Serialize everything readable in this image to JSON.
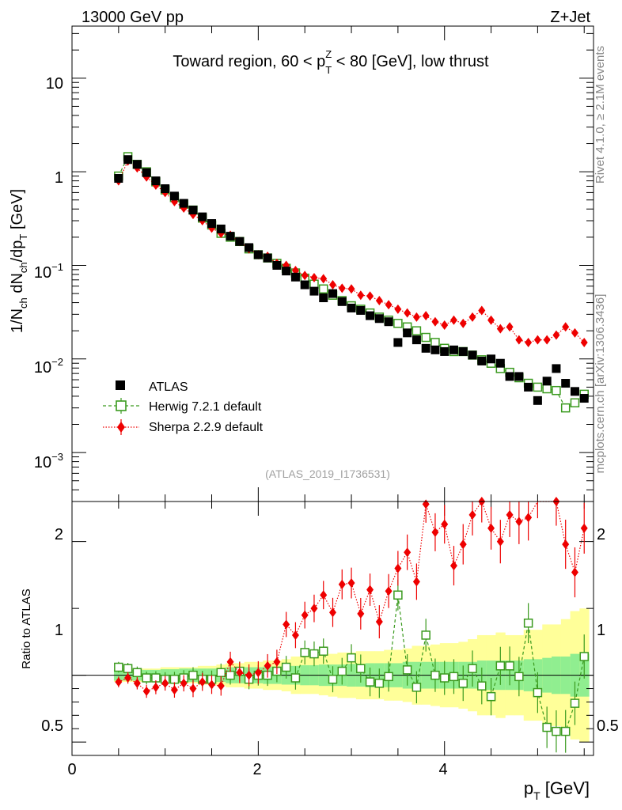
{
  "header": {
    "left": "13000 GeV pp",
    "right": "Z+Jet"
  },
  "side_text": {
    "rivet": "Rivet 4.1.0, ≥ 2.1M events",
    "mcplots": "mcplots.cern.ch [arXiv:1306.3436]"
  },
  "analysis_tag": "(ATLAS_2019_I1736531)",
  "title": {
    "pre": "Toward region, 60 < p",
    "sup": "Z",
    "sub": "T",
    "post": " < 80 [GeV], low thrust"
  },
  "axes": {
    "ylabel_main": "1/N_ch dN_ch/dp_T [GeV]",
    "ylabel_ratio": "Ratio to ATLAS",
    "xlabel": "p_T [GeV]",
    "main_yticks": [
      "10",
      "1",
      "10^-1",
      "10^-2",
      "10^-3"
    ],
    "ratio_ytick_labels": [
      "2",
      "1",
      "0.5"
    ],
    "xtick_labels": [
      "0",
      "2",
      "4"
    ]
  },
  "legend": {
    "atlas": "ATLAS",
    "herwig": "Herwig 7.2.1 default",
    "sherpa": "Sherpa 2.2.9 default"
  },
  "colors": {
    "atlas": "#000000",
    "herwig": "#3a9a1e",
    "sherpa": "#ee0000",
    "band_inner": "#90ee90",
    "band_outer": "#ffff99"
  },
  "chart_data": {
    "type": "scatter",
    "x_range": [
      0,
      5.6
    ],
    "main_y_range_log": [
      0.0003,
      36
    ],
    "ratio_y_range": [
      0.4,
      2.3
    ],
    "x": [
      0.5,
      0.6,
      0.7,
      0.8,
      0.9,
      1.0,
      1.1,
      1.2,
      1.3,
      1.4,
      1.5,
      1.6,
      1.7,
      1.8,
      1.9,
      2.0,
      2.1,
      2.2,
      2.3,
      2.4,
      2.5,
      2.6,
      2.7,
      2.8,
      2.9,
      3.0,
      3.1,
      3.2,
      3.3,
      3.4,
      3.5,
      3.6,
      3.7,
      3.8,
      3.9,
      4.0,
      4.1,
      4.2,
      4.3,
      4.4,
      4.5,
      4.6,
      4.7,
      4.8,
      4.9,
      5.0,
      5.1,
      5.2,
      5.3,
      5.4,
      5.5
    ],
    "series": [
      {
        "name": "ATLAS",
        "values": [
          0.85,
          1.35,
          1.2,
          0.98,
          0.8,
          0.66,
          0.55,
          0.46,
          0.39,
          0.33,
          0.28,
          0.245,
          0.205,
          0.18,
          0.155,
          0.13,
          0.12,
          0.1,
          0.087,
          0.075,
          0.062,
          0.053,
          0.045,
          0.05,
          0.041,
          0.035,
          0.033,
          0.029,
          0.027,
          0.025,
          0.015,
          0.019,
          0.016,
          0.013,
          0.0125,
          0.012,
          0.0125,
          0.012,
          0.011,
          0.0095,
          0.01,
          0.009,
          0.0065,
          0.0065,
          0.005,
          0.0036,
          0.0058,
          0.0079,
          0.0055,
          0.0045,
          0.0038
        ]
      },
      {
        "name": "Herwig 7.2.1 default",
        "values": [
          0.9,
          1.45,
          1.2,
          1.0,
          0.78,
          0.64,
          0.53,
          0.45,
          0.39,
          0.32,
          0.27,
          0.22,
          0.2,
          0.18,
          0.15,
          0.13,
          0.12,
          0.105,
          0.093,
          0.083,
          0.073,
          0.063,
          0.056,
          0.048,
          0.042,
          0.037,
          0.034,
          0.031,
          0.028,
          0.026,
          0.024,
          0.022,
          0.02,
          0.017,
          0.015,
          0.013,
          0.012,
          0.012,
          0.011,
          0.0098,
          0.009,
          0.0079,
          0.0072,
          0.0063,
          0.0055,
          0.005,
          0.0048,
          0.0046,
          0.003,
          0.0034,
          0.0042
        ],
        "ratio": [
          1.06,
          1.05,
          1.02,
          0.98,
          0.98,
          0.97,
          0.97,
          0.98,
          1.0,
          0.97,
          0.97,
          1.02,
          1.0,
          1.03,
          0.97,
          1.0,
          1.0,
          1.03,
          1.06,
          0.98,
          1.17,
          1.16,
          1.18,
          0.97,
          1.03,
          1.13,
          1.05,
          0.95,
          0.94,
          0.99,
          1.6,
          1.04,
          0.91,
          1.3,
          1.0,
          0.98,
          0.99,
          0.94,
          1.05,
          0.92,
          0.84,
          1.07,
          1.07,
          0.99,
          1.39,
          0.87,
          0.61,
          0.58,
          0.58,
          0.79,
          1.14
        ]
      },
      {
        "name": "Sherpa 2.2.9 default",
        "values": [
          0.8,
          1.3,
          1.1,
          0.88,
          0.72,
          0.6,
          0.48,
          0.41,
          0.35,
          0.3,
          0.25,
          0.22,
          0.21,
          0.18,
          0.15,
          0.13,
          0.125,
          0.105,
          0.1,
          0.088,
          0.078,
          0.074,
          0.072,
          0.062,
          0.057,
          0.056,
          0.048,
          0.047,
          0.042,
          0.038,
          0.034,
          0.031,
          0.028,
          0.029,
          0.025,
          0.023,
          0.026,
          0.024,
          0.028,
          0.033,
          0.026,
          0.021,
          0.022,
          0.016,
          0.015,
          0.016,
          0.016,
          0.018,
          0.022,
          0.019,
          0.015
        ],
        "ratio": [
          0.95,
          0.98,
          0.94,
          0.88,
          0.91,
          0.94,
          0.89,
          0.94,
          0.9,
          0.95,
          0.93,
          0.92,
          1.1,
          1.02,
          1.0,
          1.02,
          1.07,
          1.1,
          1.38,
          1.3,
          1.45,
          1.5,
          1.6,
          1.47,
          1.68,
          1.69,
          1.46,
          1.64,
          1.4,
          1.63,
          1.8,
          1.92,
          1.7,
          2.28,
          2.07,
          2.13,
          1.82,
          1.98,
          2.2,
          2.3,
          2.1,
          2.0,
          2.2,
          2.15,
          2.18,
          2.35,
          2.7,
          2.3,
          1.98,
          1.77,
          2.1
        ]
      }
    ],
    "uncertainty_band": {
      "inner": [
        0.04,
        0.04,
        0.04,
        0.04,
        0.04,
        0.045,
        0.045,
        0.05,
        0.05,
        0.05,
        0.05,
        0.05,
        0.06,
        0.06,
        0.06,
        0.06,
        0.065,
        0.065,
        0.07,
        0.07,
        0.075,
        0.075,
        0.08,
        0.08,
        0.08,
        0.085,
        0.085,
        0.09,
        0.09,
        0.09,
        0.09,
        0.1,
        0.1,
        0.1,
        0.1,
        0.1,
        0.1,
        0.1,
        0.1,
        0.11,
        0.11,
        0.11,
        0.11,
        0.11,
        0.12,
        0.12,
        0.13,
        0.14,
        0.14,
        0.16,
        0.16
      ],
      "outer": [
        0.05,
        0.05,
        0.05,
        0.05,
        0.05,
        0.06,
        0.06,
        0.06,
        0.06,
        0.07,
        0.07,
        0.08,
        0.09,
        0.09,
        0.1,
        0.1,
        0.11,
        0.11,
        0.12,
        0.14,
        0.14,
        0.14,
        0.15,
        0.16,
        0.17,
        0.17,
        0.18,
        0.18,
        0.18,
        0.19,
        0.19,
        0.2,
        0.22,
        0.22,
        0.23,
        0.24,
        0.24,
        0.25,
        0.27,
        0.3,
        0.3,
        0.32,
        0.3,
        0.3,
        0.34,
        0.34,
        0.38,
        0.38,
        0.42,
        0.48,
        0.5
      ]
    }
  }
}
